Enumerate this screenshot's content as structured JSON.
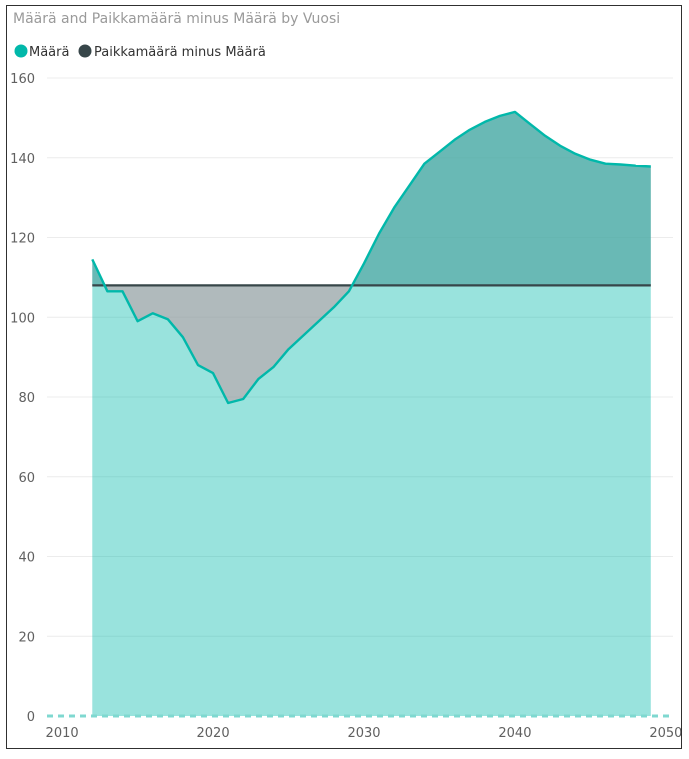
{
  "chart_data": {
    "type": "area",
    "title": "Määrä and Paikkamäärä minus Määrä by Vuosi",
    "xlabel": "",
    "ylabel": "",
    "xlim": [
      2009,
      2051
    ],
    "ylim": [
      0,
      160
    ],
    "x_ticks": [
      2010,
      2020,
      2030,
      2040,
      2050
    ],
    "y_ticks": [
      0,
      20,
      40,
      60,
      80,
      100,
      120,
      140,
      160
    ],
    "grid": true,
    "legend_position": "top-left",
    "series": [
      {
        "name": "Määrä",
        "color": "#01B8AA",
        "x": [
          2012,
          2013,
          2014,
          2015,
          2016,
          2017,
          2018,
          2019,
          2020,
          2021,
          2022,
          2023,
          2024,
          2025,
          2026,
          2027,
          2028,
          2029,
          2030,
          2031,
          2032,
          2033,
          2034,
          2035,
          2036,
          2037,
          2038,
          2039,
          2040,
          2041,
          2042,
          2043,
          2044,
          2045,
          2046,
          2047,
          2048,
          2049
        ],
        "values": [
          114.5,
          106.5,
          106.5,
          99,
          101,
          99.5,
          95,
          88,
          86,
          78.5,
          79.5,
          84.5,
          87.5,
          92,
          95.5,
          99,
          102.5,
          106.5,
          113.5,
          121,
          127.5,
          133,
          138.5,
          141.5,
          144.5,
          147,
          149,
          150.5,
          151.5,
          148.5,
          145.5,
          143,
          141,
          139.5,
          138.5,
          138.3,
          138,
          137.8
        ]
      },
      {
        "name": "Paikkamäärä minus Määrä",
        "color": "#374649",
        "x": [
          2012,
          2049
        ],
        "values": [
          108,
          108
        ]
      }
    ]
  }
}
